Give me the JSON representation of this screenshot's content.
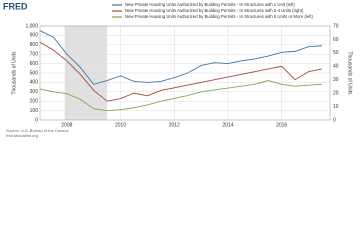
{
  "logo": "FRED",
  "chart_data": {
    "type": "line",
    "series": [
      {
        "name": "New Private Housing Units Authorized by Building Permits - In Structures with 1 Unit (left)",
        "color": "#4572a7",
        "axis": "y",
        "values": [
          950,
          880,
          700,
          560,
          380,
          420,
          470,
          410,
          400,
          410,
          450,
          500,
          580,
          610,
          600,
          630,
          650,
          680,
          720,
          730,
          780,
          790
        ]
      },
      {
        "name": "New Private Housing Units Authorized by Building Permits - In Structures with 2-4 Units (right)",
        "color": "#aa4643",
        "axis": "y2",
        "values": [
          58,
          52,
          44,
          34,
          22,
          14,
          16,
          20,
          18,
          22,
          24,
          26,
          28,
          30,
          32,
          34,
          36,
          38,
          40,
          30,
          36,
          38
        ]
      },
      {
        "name": "New Private Housing Units Authorized by Building Permits - In Structures with 5 Units or More (left)",
        "color": "#89a54e",
        "axis": "y",
        "values": [
          330,
          300,
          280,
          220,
          120,
          100,
          110,
          130,
          160,
          200,
          230,
          260,
          300,
          320,
          340,
          360,
          380,
          420,
          380,
          360,
          370,
          380
        ]
      }
    ],
    "x": [
      2007,
      2007.5,
      2008,
      2008.5,
      2009,
      2009.5,
      2010,
      2010.5,
      2011,
      2011.5,
      2012,
      2012.5,
      2013,
      2013.5,
      2014,
      2014.5,
      2015,
      2015.5,
      2016,
      2016.5,
      2017,
      2017.5
    ],
    "xlim": [
      2007,
      2017.8
    ],
    "xticks": [
      2008,
      2010,
      2012,
      2014,
      2016
    ],
    "ylim": [
      0,
      1000
    ],
    "yticks": [
      0,
      100,
      200,
      300,
      400,
      500,
      600,
      700,
      800,
      900,
      {
        "value": 1000,
        "label": "1,000"
      }
    ],
    "y2lim": [
      0,
      70
    ],
    "y2ticks": [
      0,
      10,
      20,
      30,
      40,
      50,
      60,
      70
    ],
    "ylabel": "Thousands of Units",
    "y2label": "Thousands of Units",
    "grid": true,
    "recessions": [
      [
        2007.92,
        2009.5
      ]
    ],
    "recession_color": "#e1e1e1",
    "source": "Source: U.S. Bureau of the Census",
    "site": "fred.stlouisfed.org"
  }
}
